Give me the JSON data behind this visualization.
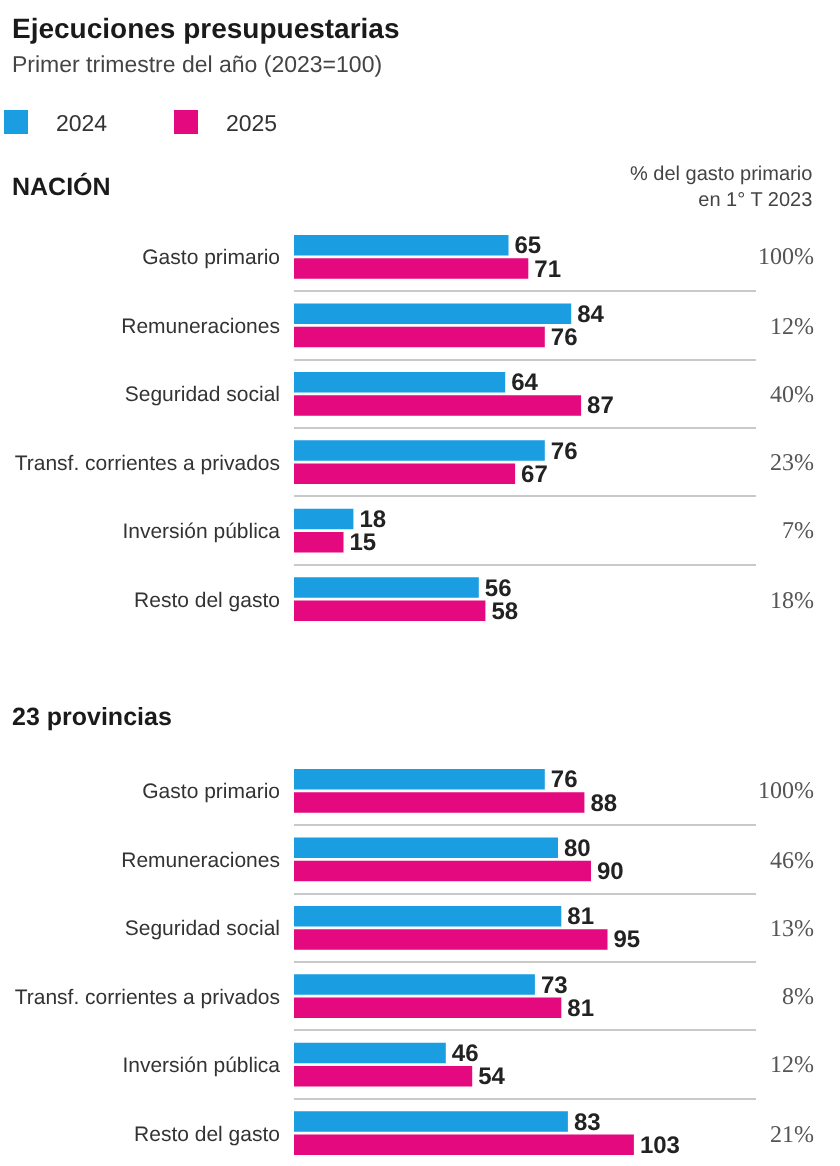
{
  "chart_data": [
    {
      "type": "other",
      "title": "Ejecuciones presupuestarias",
      "subtitle": "Primer trimestre del año (2023=100)"
    },
    {
      "type": "bar",
      "orientation": "horizontal",
      "title": "NACIÓN",
      "categories": [
        "Gasto primario",
        "Remuneraciones",
        "Seguridad social",
        "Transf. corrientes a privados",
        "Inversión pública",
        "Resto del gasto"
      ],
      "series": [
        {
          "name": "2024",
          "color": "#1b9de2",
          "values": [
            65,
            84,
            64,
            76,
            18,
            56
          ]
        },
        {
          "name": "2025",
          "color": "#e4097f",
          "values": [
            71,
            76,
            87,
            67,
            15,
            58
          ]
        }
      ],
      "xlim": [
        0,
        140
      ],
      "data_labels": true,
      "grid": "y",
      "legend": "top left",
      "tick_labels": "y",
      "annotations": [
        "% del gasto primario\nen 1° T 2023",
        "100%",
        "12%",
        "40%",
        "23%",
        "7%",
        "18%"
      ]
    },
    {
      "type": "bar",
      "orientation": "horizontal",
      "title": "23 provincias",
      "categories": [
        "Gasto primario",
        "Remuneraciones",
        "Seguridad social",
        "Transf. corrientes a privados",
        "Inversión pública",
        "Resto del gasto"
      ],
      "series": [
        {
          "color": "#1b9de2",
          "values": [
            76,
            80,
            81,
            73,
            46,
            83
          ]
        },
        {
          "color": "#e4097f",
          "values": [
            88,
            90,
            95,
            81,
            54,
            103
          ]
        }
      ],
      "xlim": [
        0,
        140
      ],
      "data_labels": true,
      "grid": "y",
      "tick_labels": "y",
      "annotations": [
        "100%",
        "46%",
        "13%",
        "8%",
        "12%",
        "21%"
      ]
    }
  ]
}
